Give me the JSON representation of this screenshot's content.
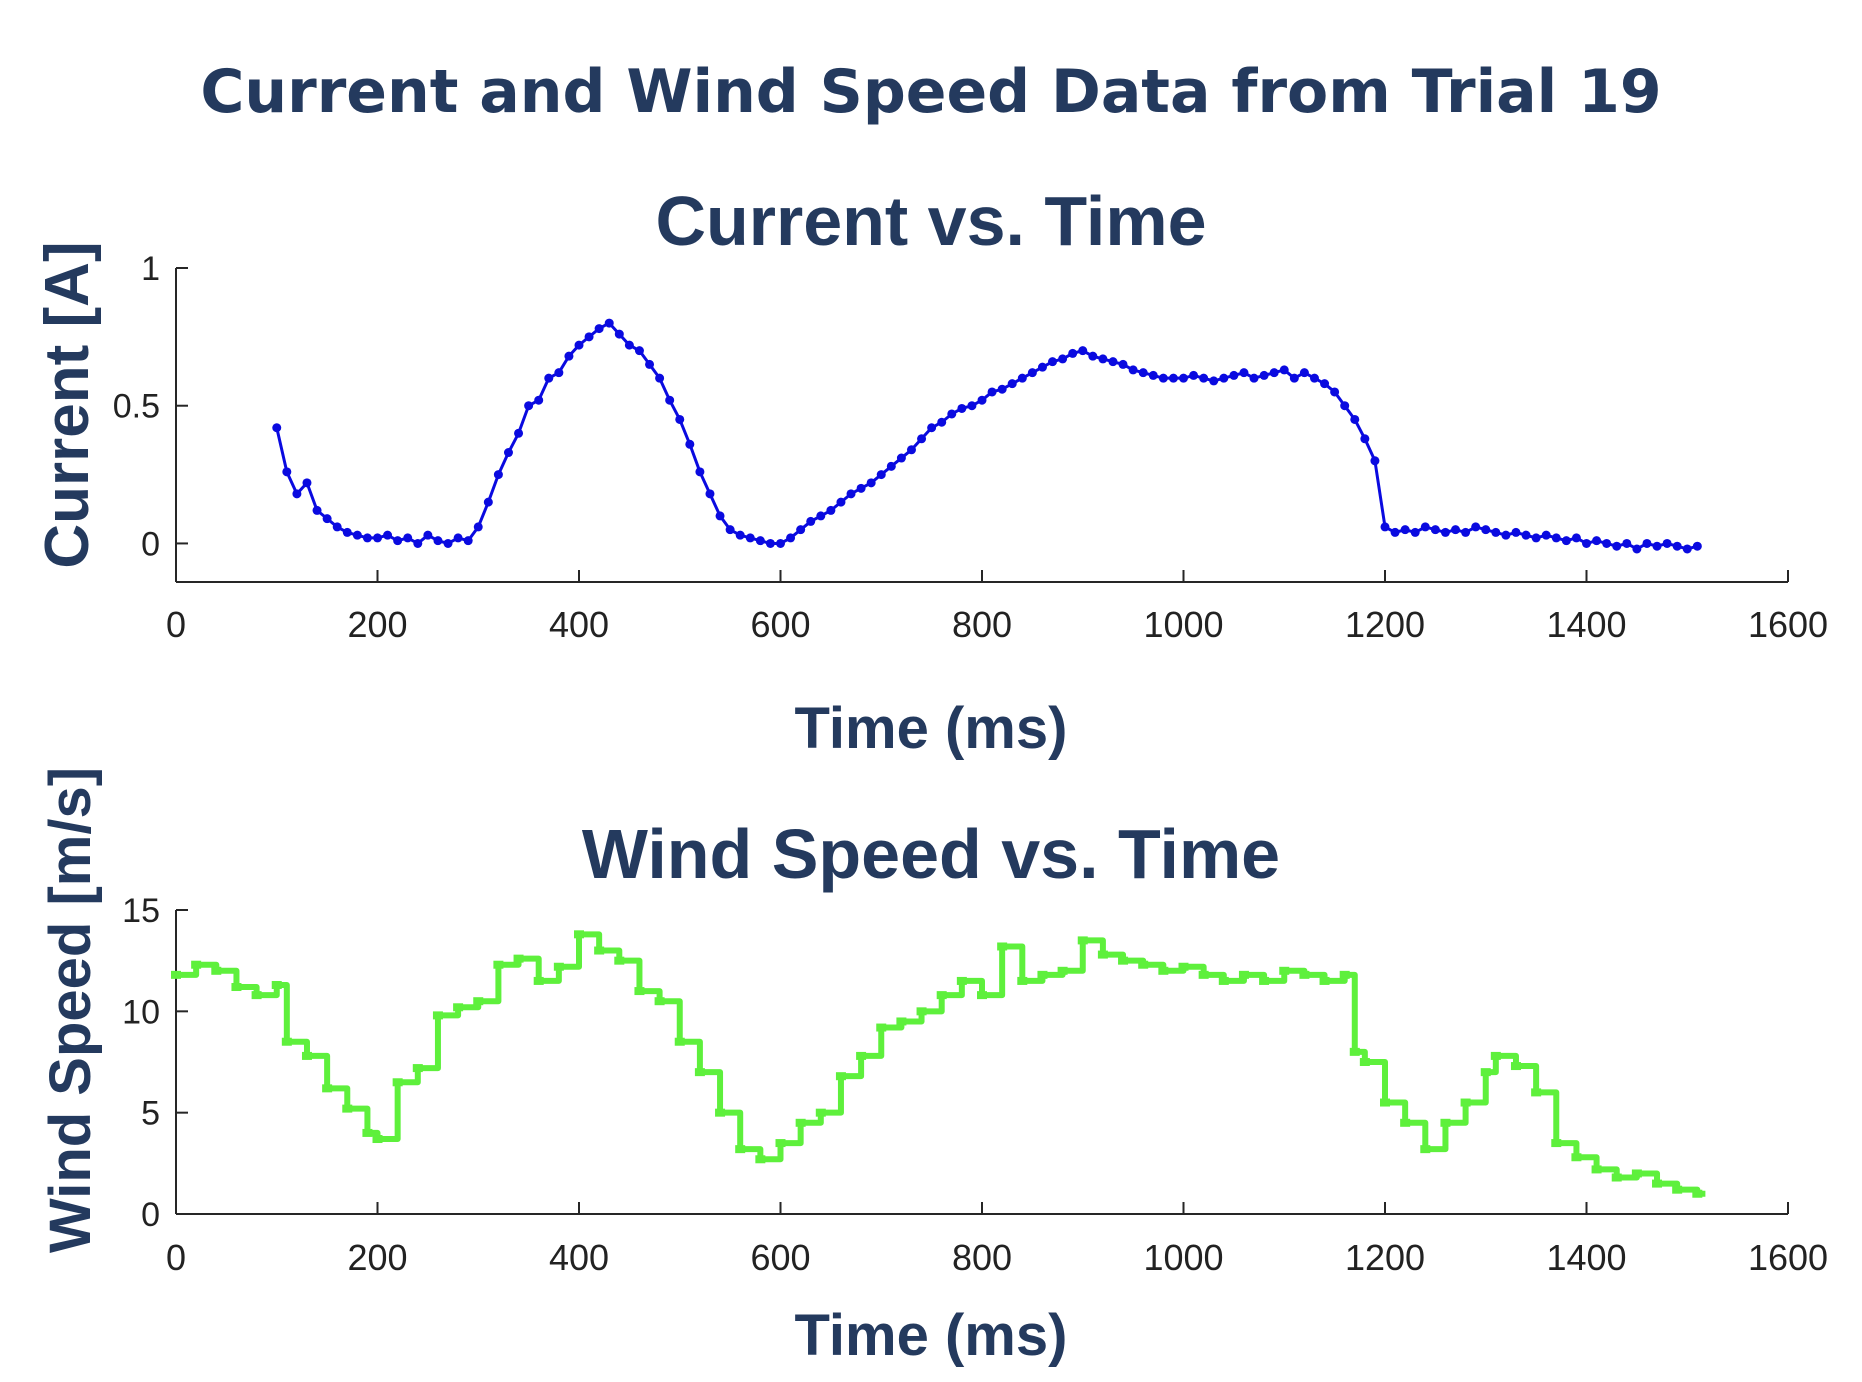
{
  "page_title": "Current and Wind Speed Data from Trial 19",
  "colors": {
    "title": "#243a5e",
    "axis": "#262626",
    "current_series": "#0a0ae0",
    "wind_series": "#5ef03c"
  },
  "chart_data": [
    {
      "type": "line",
      "title": "Current vs. Time",
      "xlabel": "Time (ms)",
      "ylabel": "Current [A]",
      "xlim": [
        0,
        1600
      ],
      "ylim": [
        -0.14,
        1.0
      ],
      "xticks": [
        0,
        200,
        400,
        600,
        800,
        1000,
        1200,
        1400,
        1600
      ],
      "yticks": [
        0,
        0.5,
        1
      ],
      "ytick_labels": [
        "0",
        "0.5",
        "1"
      ],
      "markers": true,
      "series_color": "#0a0ae0",
      "series": [
        {
          "x": [
            100,
            110,
            120,
            130,
            140,
            150,
            160,
            170,
            180,
            190,
            200,
            210,
            220,
            230,
            240,
            250,
            260,
            270,
            280,
            290,
            300,
            310,
            320,
            330,
            340,
            350,
            360,
            370,
            380,
            390,
            400,
            410,
            420,
            430,
            440,
            450,
            460,
            470,
            480,
            490,
            500,
            510,
            520,
            530,
            540,
            550,
            560,
            570,
            580,
            590,
            600,
            610,
            620,
            630,
            640,
            650,
            660,
            670,
            680,
            690,
            700,
            710,
            720,
            730,
            740,
            750,
            760,
            770,
            780,
            790,
            800,
            810,
            820,
            830,
            840,
            850,
            860,
            870,
            880,
            890,
            900,
            910,
            920,
            930,
            940,
            950,
            960,
            970,
            980,
            990,
            1000,
            1010,
            1020,
            1030,
            1040,
            1050,
            1060,
            1070,
            1080,
            1090,
            1100,
            1110,
            1120,
            1130,
            1140,
            1150,
            1160,
            1170,
            1180,
            1190,
            1200,
            1210,
            1220,
            1230,
            1240,
            1250,
            1260,
            1270,
            1280,
            1290,
            1300,
            1310,
            1320,
            1330,
            1340,
            1350,
            1360,
            1370,
            1380,
            1390,
            1400,
            1410,
            1420,
            1430,
            1440,
            1450,
            1460,
            1470,
            1480,
            1490,
            1500,
            1510
          ],
          "y": [
            0.42,
            0.26,
            0.18,
            0.22,
            0.12,
            0.09,
            0.06,
            0.04,
            0.03,
            0.02,
            0.02,
            0.03,
            0.01,
            0.02,
            0.0,
            0.03,
            0.01,
            0.0,
            0.02,
            0.01,
            0.06,
            0.15,
            0.25,
            0.33,
            0.4,
            0.5,
            0.52,
            0.6,
            0.62,
            0.68,
            0.72,
            0.75,
            0.78,
            0.8,
            0.76,
            0.72,
            0.7,
            0.65,
            0.6,
            0.52,
            0.45,
            0.36,
            0.26,
            0.18,
            0.1,
            0.05,
            0.03,
            0.02,
            0.01,
            0.0,
            0.0,
            0.02,
            0.05,
            0.08,
            0.1,
            0.12,
            0.15,
            0.18,
            0.2,
            0.22,
            0.25,
            0.28,
            0.31,
            0.34,
            0.38,
            0.42,
            0.44,
            0.47,
            0.49,
            0.5,
            0.52,
            0.55,
            0.56,
            0.58,
            0.6,
            0.62,
            0.64,
            0.66,
            0.67,
            0.69,
            0.7,
            0.68,
            0.67,
            0.66,
            0.65,
            0.63,
            0.62,
            0.61,
            0.6,
            0.6,
            0.6,
            0.61,
            0.6,
            0.59,
            0.6,
            0.61,
            0.62,
            0.6,
            0.61,
            0.62,
            0.63,
            0.6,
            0.62,
            0.6,
            0.58,
            0.55,
            0.5,
            0.45,
            0.38,
            0.3,
            0.06,
            0.04,
            0.05,
            0.04,
            0.06,
            0.05,
            0.04,
            0.05,
            0.04,
            0.06,
            0.05,
            0.04,
            0.03,
            0.04,
            0.03,
            0.02,
            0.03,
            0.02,
            0.01,
            0.02,
            0.0,
            0.01,
            0.0,
            -0.01,
            0.0,
            -0.02,
            0.0,
            -0.01,
            0.0,
            -0.01,
            -0.02,
            -0.01
          ]
        }
      ]
    },
    {
      "type": "line",
      "title": "Wind Speed vs. Time",
      "xlabel": "Time (ms)",
      "ylabel": "Wind Speed [m/s]",
      "xlim": [
        0,
        1600
      ],
      "ylim": [
        0,
        15
      ],
      "xticks": [
        0,
        200,
        400,
        600,
        800,
        1000,
        1200,
        1400,
        1600
      ],
      "yticks": [
        0,
        5,
        10,
        15
      ],
      "ytick_labels": [
        "0",
        "5",
        "10",
        "15"
      ],
      "markers": false,
      "step": true,
      "series_color": "#5ef03c",
      "series": [
        {
          "x": [
            0,
            20,
            40,
            60,
            80,
            100,
            110,
            130,
            150,
            170,
            190,
            200,
            220,
            240,
            260,
            280,
            300,
            320,
            340,
            360,
            380,
            400,
            420,
            440,
            460,
            480,
            500,
            520,
            540,
            560,
            580,
            600,
            620,
            640,
            660,
            680,
            700,
            720,
            740,
            760,
            780,
            800,
            820,
            840,
            860,
            880,
            900,
            920,
            940,
            960,
            980,
            1000,
            1020,
            1040,
            1060,
            1080,
            1100,
            1120,
            1140,
            1160,
            1170,
            1180,
            1200,
            1220,
            1240,
            1260,
            1280,
            1300,
            1310,
            1330,
            1350,
            1370,
            1390,
            1410,
            1430,
            1450,
            1470,
            1490,
            1510
          ],
          "y": [
            11.8,
            12.3,
            12.0,
            11.2,
            10.8,
            11.3,
            8.5,
            7.8,
            6.2,
            5.2,
            4.0,
            3.7,
            6.5,
            7.2,
            9.8,
            10.2,
            10.5,
            12.3,
            12.6,
            11.5,
            12.2,
            13.8,
            13.0,
            12.5,
            11.0,
            10.5,
            8.5,
            7.0,
            5.0,
            3.2,
            2.7,
            3.5,
            4.5,
            5.0,
            6.8,
            7.8,
            9.2,
            9.5,
            10.0,
            10.8,
            11.5,
            10.8,
            13.2,
            11.5,
            11.8,
            12.0,
            13.5,
            12.8,
            12.5,
            12.3,
            12.0,
            12.2,
            11.8,
            11.5,
            11.8,
            11.5,
            12.0,
            11.8,
            11.5,
            11.8,
            8.0,
            7.5,
            5.5,
            4.5,
            3.2,
            4.5,
            5.5,
            7.0,
            7.8,
            7.3,
            6.0,
            3.5,
            2.8,
            2.2,
            1.8,
            2.0,
            1.5,
            1.2,
            1.0
          ]
        }
      ]
    }
  ]
}
